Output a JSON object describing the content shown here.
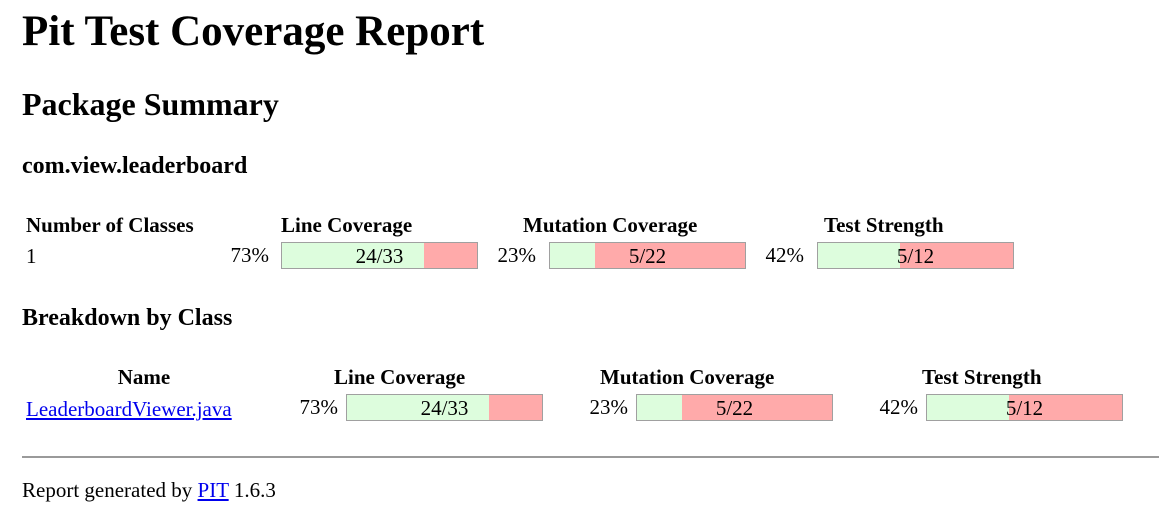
{
  "title": "Pit Test Coverage Report",
  "package_summary": {
    "heading": "Package Summary",
    "package_name": "com.view.leaderboard",
    "headers": {
      "classes": "Number of Classes",
      "line": "Line Coverage",
      "mutation": "Mutation Coverage",
      "strength": "Test Strength"
    },
    "row": {
      "classes": "1",
      "line": {
        "pct": "73%",
        "label": "24/33",
        "fraction": 0.73
      },
      "mutation": {
        "pct": "23%",
        "label": "5/22",
        "fraction": 0.23
      },
      "strength": {
        "pct": "42%",
        "label": "5/12",
        "fraction": 0.42
      }
    }
  },
  "breakdown": {
    "heading": "Breakdown by Class",
    "headers": {
      "name": "Name",
      "line": "Line Coverage",
      "mutation": "Mutation Coverage",
      "strength": "Test Strength"
    },
    "rows": [
      {
        "name": "LeaderboardViewer.java",
        "line": {
          "pct": "73%",
          "label": "24/33",
          "fraction": 0.73
        },
        "mutation": {
          "pct": "23%",
          "label": "5/22",
          "fraction": 0.23
        },
        "strength": {
          "pct": "42%",
          "label": "5/12",
          "fraction": 0.42
        }
      }
    ]
  },
  "footer": {
    "prefix": "Report generated by",
    "link": "PIT",
    "version": "1.6.3"
  },
  "colors": {
    "covered": "#ddfddd",
    "uncovered": "#ffaaaa",
    "link": "#0000ee"
  }
}
